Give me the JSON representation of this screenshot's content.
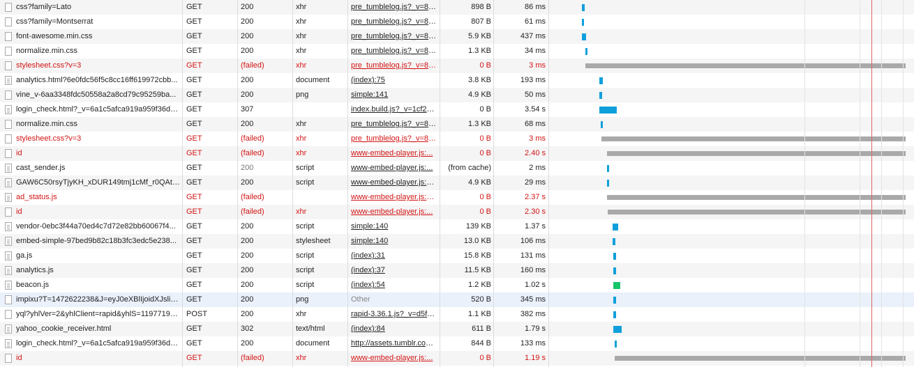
{
  "colors": {
    "bar_normal": "#0fa0dc",
    "bar_green": "#16c46a",
    "bar_failed": "#a9a9a9",
    "failed_text": "#d21414"
  },
  "requests": [
    {
      "name": "css?family=Lato",
      "method": "GET",
      "status": "200",
      "type": "xhr",
      "initiator": "pre_tumblelog.js?_v=81...",
      "size": "898 B",
      "time": "86 ms",
      "failed": false,
      "icon": "file-icon",
      "bar_start_ms": 0,
      "bar_duration_ms": 86
    },
    {
      "name": "css?family=Montserrat",
      "method": "GET",
      "status": "200",
      "type": "xhr",
      "initiator": "pre_tumblelog.js?_v=81...",
      "size": "807 B",
      "time": "61 ms",
      "failed": false,
      "icon": "file-icon",
      "bar_start_ms": 0,
      "bar_duration_ms": 61
    },
    {
      "name": "font-awesome.min.css",
      "method": "GET",
      "status": "200",
      "type": "xhr",
      "initiator": "pre_tumblelog.js?_v=81...",
      "size": "5.9 KB",
      "time": "437 ms",
      "failed": false,
      "icon": "file-icon",
      "bar_start_ms": 10,
      "bar_duration_ms": 130
    },
    {
      "name": "normalize.min.css",
      "method": "GET",
      "status": "200",
      "type": "xhr",
      "initiator": "pre_tumblelog.js?_v=81...",
      "size": "1.3 KB",
      "time": "34 ms",
      "failed": false,
      "icon": "file-icon",
      "bar_start_ms": 110,
      "bar_duration_ms": 34
    },
    {
      "name": "stylesheet.css?v=3",
      "method": "GET",
      "status": "(failed)",
      "type": "xhr",
      "initiator": "pre_tumblelog.js?_v=81...",
      "size": "0 B",
      "time": "3 ms",
      "failed": true,
      "icon": "file-icon",
      "bar_start_ms": 130,
      "bar_duration_ms": 12000
    },
    {
      "name": "analytics.html?6e0fdc56f5c8cc16ff619972cbb...",
      "method": "GET",
      "status": "200",
      "type": "document",
      "initiator": "(index):75",
      "size": "3.8 KB",
      "time": "193 ms",
      "failed": false,
      "icon": "doc-icon",
      "bar_start_ms": 600,
      "bar_duration_ms": 120
    },
    {
      "name": "vine_v-6aa3348fdc50558a2a8cd79c95259ba...",
      "method": "GET",
      "status": "200",
      "type": "png",
      "initiator": "simple:141",
      "size": "4.9 KB",
      "time": "50 ms",
      "failed": false,
      "icon": "file-icon",
      "bar_start_ms": 600,
      "bar_duration_ms": 80
    },
    {
      "name": "login_check.html?_v=6a1c5afca919a959f36db...",
      "method": "GET",
      "status": "307",
      "type": "",
      "initiator": "index.build.js?_v=1cf25...",
      "size": "0 B",
      "time": "3.54 s",
      "failed": false,
      "icon": "doc-icon",
      "bar_start_ms": 600,
      "bar_duration_ms": 600
    },
    {
      "name": "normalize.min.css",
      "method": "GET",
      "status": "200",
      "type": "xhr",
      "initiator": "pre_tumblelog.js?_v=81...",
      "size": "1.3 KB",
      "time": "68 ms",
      "failed": false,
      "icon": "file-icon",
      "bar_start_ms": 650,
      "bar_duration_ms": 68
    },
    {
      "name": "stylesheet.css?v=3",
      "method": "GET",
      "status": "(failed)",
      "type": "xhr",
      "initiator": "pre_tumblelog.js?_v=81...",
      "size": "0 B",
      "time": "3 ms",
      "failed": true,
      "icon": "file-icon",
      "bar_start_ms": 660,
      "bar_duration_ms": 12000
    },
    {
      "name": "id",
      "method": "GET",
      "status": "(failed)",
      "type": "xhr",
      "initiator": "www-embed-player.js:...",
      "size": "0 B",
      "time": "2.40 s",
      "failed": true,
      "icon": "file-icon",
      "bar_start_ms": 850,
      "bar_duration_ms": 12000
    },
    {
      "name": "cast_sender.js",
      "method": "GET",
      "status": "200",
      "type": "script",
      "initiator": "www-embed-player.js:...",
      "size": "(from cache)",
      "time": "2 ms",
      "failed": false,
      "icon": "doc-icon",
      "bar_start_ms": 850,
      "bar_duration_ms": 60
    },
    {
      "name": "GAW6C50rsyTjyKH_xDUR149tmj1cMf_r0QAth1...",
      "method": "GET",
      "status": "200",
      "type": "script",
      "initiator": "www-embed-player.js:1...",
      "size": "4.9 KB",
      "time": "29 ms",
      "failed": false,
      "icon": "doc-icon",
      "bar_start_ms": 850,
      "bar_duration_ms": 60
    },
    {
      "name": "ad_status.js",
      "method": "GET",
      "status": "(failed)",
      "type": "",
      "initiator": "www-embed-player.js:1...",
      "size": "0 B",
      "time": "2.37 s",
      "failed": true,
      "icon": "doc-icon",
      "bar_start_ms": 860,
      "bar_duration_ms": 12000
    },
    {
      "name": "id",
      "method": "GET",
      "status": "(failed)",
      "type": "xhr",
      "initiator": "www-embed-player.js:...",
      "size": "0 B",
      "time": "2.30 s",
      "failed": true,
      "icon": "file-icon",
      "bar_start_ms": 880,
      "bar_duration_ms": 12000
    },
    {
      "name": "vendor-0ebc3f44a70ed4c7d72e82bb60067f4...",
      "method": "GET",
      "status": "200",
      "type": "script",
      "initiator": "simple:140",
      "size": "139 KB",
      "time": "1.37 s",
      "failed": false,
      "icon": "doc-icon",
      "bar_start_ms": 1050,
      "bar_duration_ms": 200
    },
    {
      "name": "embed-simple-97bed9b82c18b3fc3edc5e238...",
      "method": "GET",
      "status": "200",
      "type": "stylesheet",
      "initiator": "simple:140",
      "size": "13.0 KB",
      "time": "106 ms",
      "failed": false,
      "icon": "doc-icon",
      "bar_start_ms": 1050,
      "bar_duration_ms": 100
    },
    {
      "name": "ga.js",
      "method": "GET",
      "status": "200",
      "type": "script",
      "initiator": "(index):31",
      "size": "15.8 KB",
      "time": "131 ms",
      "failed": false,
      "icon": "doc-icon",
      "bar_start_ms": 1060,
      "bar_duration_ms": 100
    },
    {
      "name": "analytics.js",
      "method": "GET",
      "status": "200",
      "type": "script",
      "initiator": "(index):37",
      "size": "11.5 KB",
      "time": "160 ms",
      "failed": false,
      "icon": "doc-icon",
      "bar_start_ms": 1060,
      "bar_duration_ms": 100
    },
    {
      "name": "beacon.js",
      "method": "GET",
      "status": "200",
      "type": "script",
      "initiator": "(index):54",
      "size": "1.2 KB",
      "time": "1.02 s",
      "failed": false,
      "icon": "doc-icon",
      "bar_start_ms": 1060,
      "bar_duration_ms": 240,
      "green": true
    },
    {
      "name": "impixu?T=1472622238&J=eyJ0eXBlIjoidXJsliw...",
      "method": "GET",
      "status": "200",
      "type": "png",
      "initiator": "Other",
      "size": "520 B",
      "time": "345 ms",
      "failed": false,
      "icon": "file-icon",
      "bar_start_ms": 1060,
      "bar_duration_ms": 110,
      "highlight": true
    },
    {
      "name": "yql?yhlVer=2&yhlClient=rapid&yhlS=11977192...",
      "method": "POST",
      "status": "200",
      "type": "xhr",
      "initiator": "rapid-3.36.1.js?_v=d5fa...",
      "size": "1.1 KB",
      "time": "382 ms",
      "failed": false,
      "icon": "file-icon",
      "bar_start_ms": 1060,
      "bar_duration_ms": 110
    },
    {
      "name": "yahoo_cookie_receiver.html",
      "method": "GET",
      "status": "302",
      "type": "text/html",
      "initiator": "(index):84",
      "size": "611 B",
      "time": "1.79 s",
      "failed": false,
      "icon": "doc-icon",
      "bar_start_ms": 1070,
      "bar_duration_ms": 290
    },
    {
      "name": "login_check.html?_v=6a1c5afca919a959f36db...",
      "method": "GET",
      "status": "200",
      "type": "document",
      "initiator": "http://assets.tumblr.com...",
      "size": "844 B",
      "time": "133 ms",
      "failed": false,
      "icon": "doc-icon",
      "bar_start_ms": 1120,
      "bar_duration_ms": 80
    },
    {
      "name": "id",
      "method": "GET",
      "status": "(failed)",
      "type": "xhr",
      "initiator": "www-embed-player.js:...",
      "size": "0 B",
      "time": "1.19 s",
      "failed": true,
      "icon": "file-icon",
      "bar_start_ms": 1130,
      "bar_duration_ms": 12000
    }
  ]
}
